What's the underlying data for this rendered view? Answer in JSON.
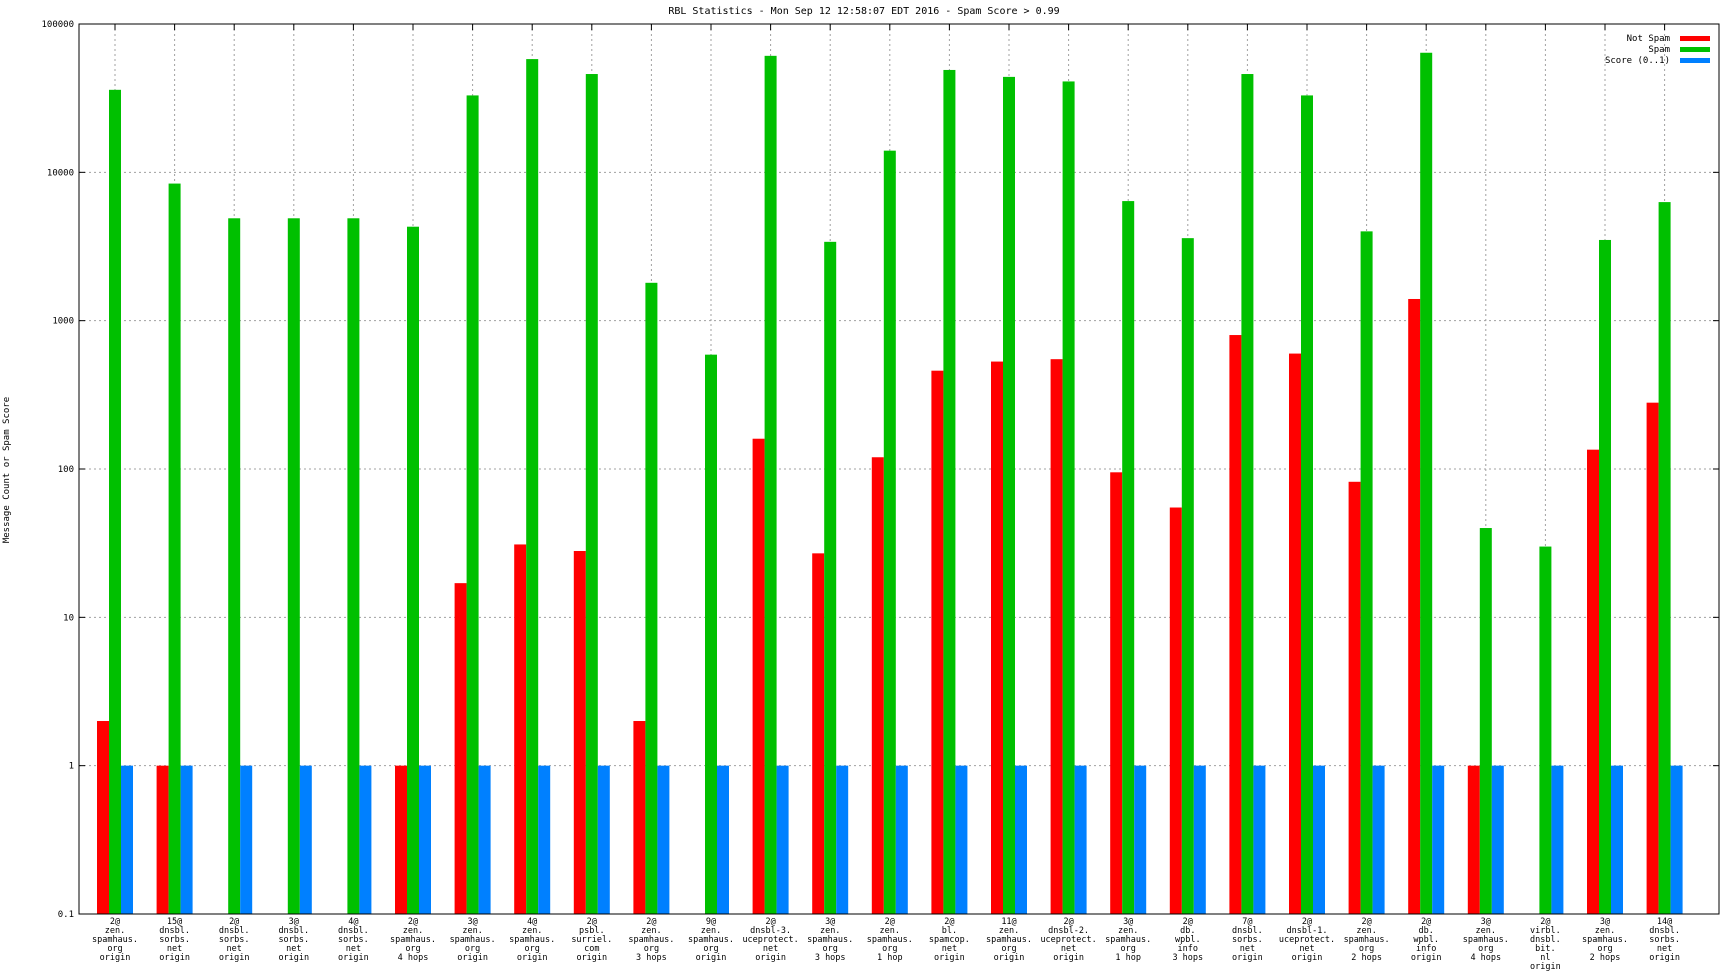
{
  "chart_data": {
    "type": "bar",
    "title": "RBL Statistics - Mon Sep 12 12:58:07 EDT 2016 - Spam Score > 0.99",
    "ylabel": "Message Count or Spam Score",
    "yscale": "log",
    "ylim": [
      0.1,
      100000
    ],
    "yticks": [
      {
        "value": 0.1,
        "label": "0.1"
      },
      {
        "value": 1,
        "label": "1"
      },
      {
        "value": 10,
        "label": "10"
      },
      {
        "value": 100,
        "label": "100"
      },
      {
        "value": 1000,
        "label": "1000"
      },
      {
        "value": 10000,
        "label": "10000"
      },
      {
        "value": 100000,
        "label": "100000"
      }
    ],
    "grid": true,
    "legend_position": "top-right",
    "categories": [
      [
        "2@",
        "zen.",
        "spamhaus.",
        "org",
        "origin"
      ],
      [
        "15@",
        "dnsbl.",
        "sorbs.",
        "net",
        "origin"
      ],
      [
        "2@",
        "dnsbl.",
        "sorbs.",
        "net",
        "origin"
      ],
      [
        "3@",
        "dnsbl.",
        "sorbs.",
        "net",
        "origin"
      ],
      [
        "4@",
        "dnsbl.",
        "sorbs.",
        "net",
        "origin"
      ],
      [
        "2@",
        "zen.",
        "spamhaus.",
        "org",
        "4 hops"
      ],
      [
        "3@",
        "zen.",
        "spamhaus.",
        "org",
        "origin"
      ],
      [
        "4@",
        "zen.",
        "spamhaus.",
        "org",
        "origin"
      ],
      [
        "2@",
        "psbl.",
        "surriel.",
        "com",
        "origin"
      ],
      [
        "2@",
        "zen.",
        "spamhaus.",
        "org",
        "3 hops"
      ],
      [
        "9@",
        "zen.",
        "spamhaus.",
        "org",
        "origin"
      ],
      [
        "2@",
        "dnsbl-3.",
        "uceprotect.",
        "net",
        "origin"
      ],
      [
        "3@",
        "zen.",
        "spamhaus.",
        "org",
        "3 hops"
      ],
      [
        "2@",
        "zen.",
        "spamhaus.",
        "org",
        "1 hop"
      ],
      [
        "2@",
        "bl.",
        "spamcop.",
        "net",
        "origin"
      ],
      [
        "11@",
        "zen.",
        "spamhaus.",
        "org",
        "origin"
      ],
      [
        "2@",
        "dnsbl-2.",
        "uceprotect.",
        "net",
        "origin"
      ],
      [
        "3@",
        "zen.",
        "spamhaus.",
        "org",
        "1 hop"
      ],
      [
        "2@",
        "db.",
        "wpbl.",
        "info",
        "3 hops"
      ],
      [
        "7@",
        "dnsbl.",
        "sorbs.",
        "net",
        "origin"
      ],
      [
        "2@",
        "dnsbl-1.",
        "uceprotect.",
        "net",
        "origin"
      ],
      [
        "2@",
        "zen.",
        "spamhaus.",
        "org",
        "2 hops"
      ],
      [
        "2@",
        "db.",
        "wpbl.",
        "info",
        "origin"
      ],
      [
        "3@",
        "zen.",
        "spamhaus.",
        "org",
        "4 hops"
      ],
      [
        "2@",
        "virbl.",
        "dnsbl.",
        "bit.",
        "nl",
        "origin"
      ],
      [
        "3@",
        "zen.",
        "spamhaus.",
        "org",
        "2 hops"
      ],
      [
        "14@",
        "dnsbl.",
        "sorbs.",
        "net",
        "origin"
      ]
    ],
    "series": [
      {
        "name": "Not Spam",
        "color": "#ff0000",
        "values": [
          2,
          1,
          null,
          null,
          null,
          1,
          17,
          31,
          28,
          2,
          null,
          160,
          27,
          120,
          460,
          530,
          550,
          95,
          55,
          800,
          600,
          82,
          1400,
          1,
          null,
          135,
          280
        ]
      },
      {
        "name": "Spam",
        "color": "#00c000",
        "values": [
          36000,
          8400,
          4900,
          4900,
          4900,
          4300,
          33000,
          58000,
          46000,
          1800,
          590,
          61000,
          3400,
          14000,
          49000,
          44000,
          41000,
          6400,
          3600,
          46000,
          33000,
          4000,
          64000,
          40,
          30,
          3500,
          6300
        ]
      },
      {
        "name": "Score (0..1)",
        "color": "#0080ff",
        "values": [
          1,
          1,
          1,
          1,
          1,
          1,
          1,
          1,
          1,
          1,
          1,
          1,
          1,
          1,
          1,
          1,
          1,
          1,
          1,
          1,
          1,
          1,
          1,
          1,
          1,
          1,
          1
        ]
      }
    ]
  }
}
